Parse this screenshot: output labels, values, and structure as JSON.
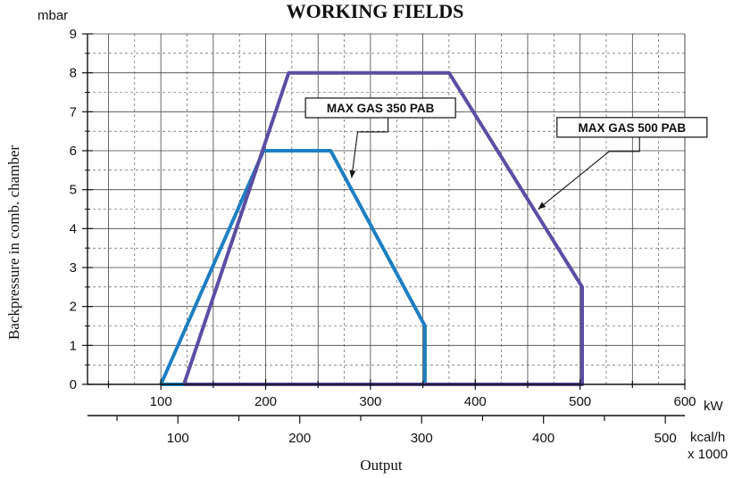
{
  "chart_data": {
    "type": "area",
    "title": "WORKING FIELDS",
    "ylabel": "Backpressure in comb. chamber",
    "yunit": "mbar",
    "xlabel": "Output",
    "x_unit_primary": "kW",
    "x_unit_secondary": "kcal/h",
    "x_unit_secondary_multiplier": "x 1000",
    "xlim": [
      30,
      600
    ],
    "ylim": [
      0,
      9
    ],
    "yticks": [
      "0",
      "1",
      "2",
      "3",
      "4",
      "5",
      "6",
      "7",
      "8",
      "9"
    ],
    "xticks_primary": [
      "100",
      "200",
      "300",
      "400",
      "500",
      "600"
    ],
    "xticks_secondary": [
      "100",
      "200",
      "300",
      "400",
      "500"
    ],
    "grid": true,
    "series": [
      {
        "name": "MAX GAS 350 PAB",
        "color": "#1e7fc1",
        "points": [
          [
            100,
            0
          ],
          [
            198,
            6
          ],
          [
            262,
            6
          ],
          [
            352,
            1.5
          ],
          [
            352,
            0
          ],
          [
            100,
            0
          ]
        ]
      },
      {
        "name": "MAX GAS 500 PAB",
        "color": "#5a4fa2",
        "points": [
          [
            122,
            0
          ],
          [
            222,
            8
          ],
          [
            375,
            8
          ],
          [
            502,
            2.5
          ],
          [
            502,
            0
          ],
          [
            122,
            0
          ]
        ]
      }
    ],
    "annotations": [
      {
        "text": "MAX GAS 350 PAB",
        "series": 0,
        "label_at": [
          238,
          7.1
        ],
        "arrow_to": [
          282,
          5.3
        ]
      },
      {
        "text": "MAX GAS 500 PAB",
        "series": 1,
        "label_at": [
          478,
          6.6
        ],
        "arrow_to": [
          460,
          4.5
        ]
      }
    ]
  }
}
